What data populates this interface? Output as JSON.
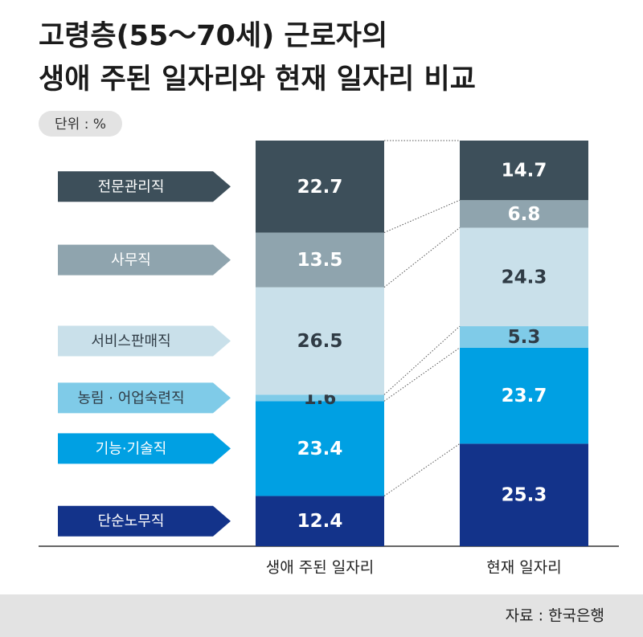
{
  "chart_data": {
    "type": "stacked_bar",
    "title": [
      "고령층(55～70세) 근로자의",
      "생애 주된 일자리와 현재 일자리 비교"
    ],
    "unit": "단위 : %",
    "source": "자료 : 한국은행",
    "categories": [
      "생애 주된 일자리",
      "현재 일자리"
    ],
    "series": [
      {
        "name": "단순노무직",
        "color": "#13338a",
        "values": [
          12.4,
          25.3
        ]
      },
      {
        "name": "기능·기술직",
        "color": "#00a0e3",
        "values": [
          23.4,
          23.7
        ]
      },
      {
        "name": "농림 · 어업숙련직",
        "color": "#7fcbe8",
        "values": [
          1.6,
          5.3
        ]
      },
      {
        "name": "서비스판매직",
        "color": "#c9e0ea",
        "values": [
          26.5,
          24.3
        ]
      },
      {
        "name": "사무직",
        "color": "#8fa4ae",
        "values": [
          13.5,
          6.8
        ]
      },
      {
        "name": "전문관리직",
        "color": "#3d4f5a",
        "values": [
          22.7,
          14.7
        ]
      }
    ]
  }
}
